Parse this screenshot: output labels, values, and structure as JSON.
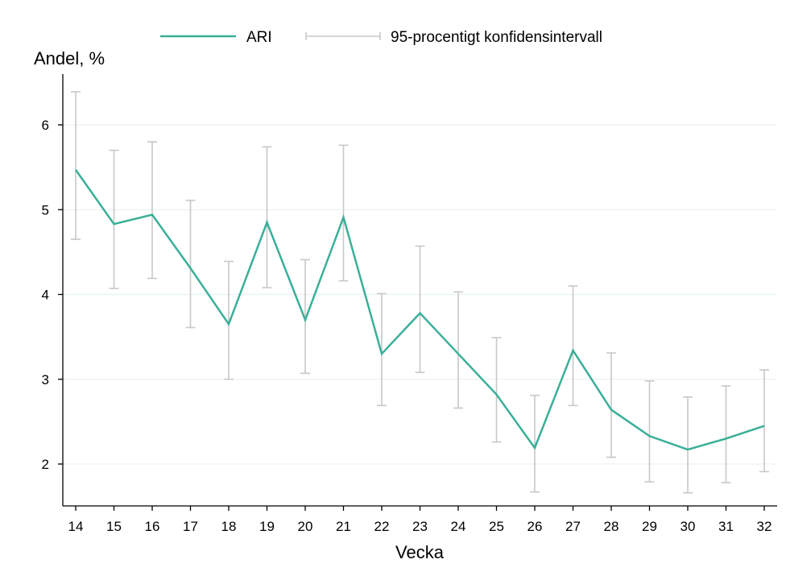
{
  "chart_data": {
    "type": "line",
    "ylabel": "Andel, %",
    "xlabel": "Vecka",
    "x": [
      14,
      15,
      16,
      17,
      18,
      19,
      20,
      21,
      22,
      23,
      24,
      25,
      26,
      27,
      28,
      29,
      30,
      31,
      32
    ],
    "series": [
      {
        "name": "ARI",
        "color": "#3aaf98",
        "values": [
          5.47,
          4.83,
          4.94,
          4.31,
          3.65,
          4.85,
          3.7,
          4.91,
          3.3,
          3.78,
          3.3,
          2.82,
          2.19,
          3.34,
          2.64,
          2.33,
          2.17,
          2.3,
          2.45
        ]
      }
    ],
    "error_bars": {
      "name": "95-procentigt konfidensintervall",
      "color": "#c8c8c8",
      "lower": [
        4.65,
        4.07,
        4.19,
        3.61,
        3.0,
        4.08,
        3.07,
        4.16,
        2.69,
        3.08,
        2.66,
        2.26,
        1.67,
        2.69,
        2.08,
        1.79,
        1.66,
        1.78,
        1.91
      ],
      "upper": [
        6.39,
        5.7,
        5.8,
        5.11,
        4.39,
        5.74,
        4.41,
        5.76,
        4.01,
        4.57,
        4.03,
        3.49,
        2.81,
        4.1,
        3.31,
        2.98,
        2.79,
        2.92,
        3.11
      ]
    },
    "yticks": [
      2,
      3,
      4,
      5,
      6
    ],
    "ylim": [
      1.5,
      6.5
    ],
    "xlim": [
      14,
      32
    ],
    "grid": true,
    "legend_position": "top"
  }
}
